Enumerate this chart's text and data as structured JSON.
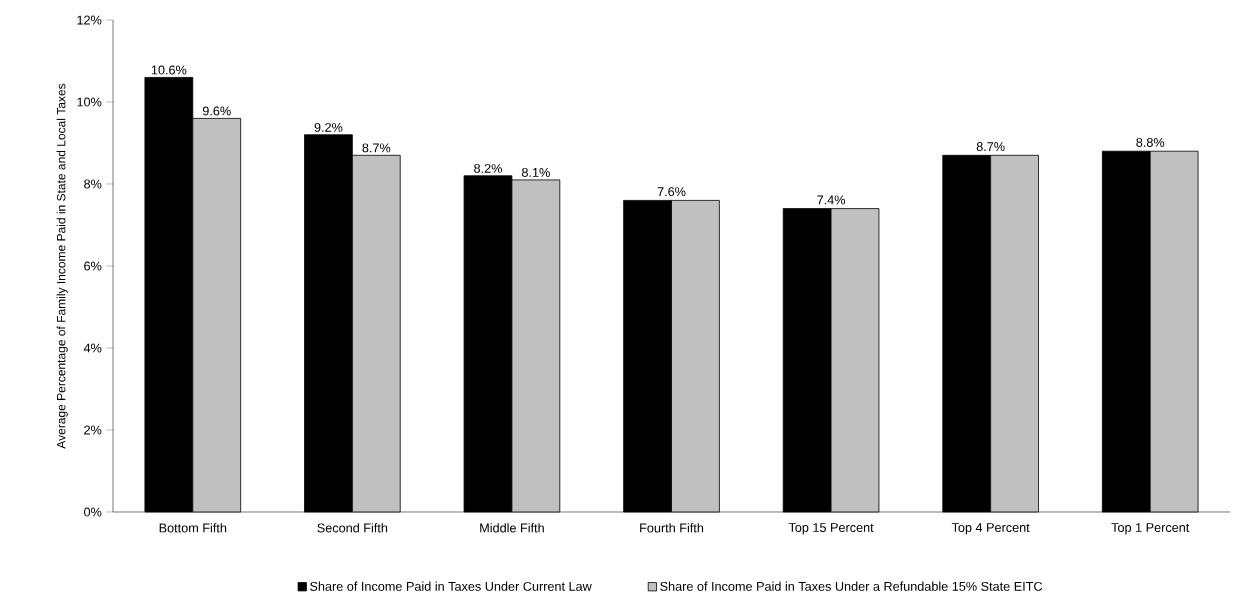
{
  "chart_data": {
    "type": "bar",
    "ylabel": "Average Percentage of Family Income Paid in State and Local Taxes",
    "categories": [
      "Bottom Fifth",
      "Second Fifth",
      "Middle Fifth",
      "Fourth Fifth",
      "Top 15 Percent",
      "Top 4 Percent",
      "Top 1 Percent"
    ],
    "series": [
      {
        "name": "Share of Income Paid in Taxes Under Current Law",
        "color": "#000000",
        "values": [
          10.6,
          9.2,
          8.2,
          7.6,
          7.4,
          8.7,
          8.8
        ],
        "value_labels": [
          "10.6%",
          "9.2%",
          "8.2%",
          null,
          null,
          null,
          null
        ]
      },
      {
        "name": "Share of Income Paid in Taxes Under a Refundable 15% State EITC",
        "color": "#c0c0c0",
        "values": [
          9.6,
          8.7,
          8.1,
          7.6,
          7.4,
          8.7,
          8.8
        ],
        "value_labels": [
          "9.6%",
          "8.7%",
          "8.1%",
          null,
          null,
          null,
          null
        ]
      }
    ],
    "annotations": [
      {
        "text": "7.6%",
        "x": "Fourth Fifth",
        "y": 7.6
      },
      {
        "text": "7.4%",
        "x": "Top 15 Percent",
        "y": 7.4
      },
      {
        "text": "8.7%",
        "x": "Top 4 Percent",
        "y": 8.7
      },
      {
        "text": "8.8%",
        "x": "Top 1 Percent",
        "y": 8.8
      }
    ],
    "ylim": [
      0,
      12
    ],
    "yticks": [
      {
        "value": 0,
        "label": "0%"
      },
      {
        "value": 2,
        "label": "2%"
      },
      {
        "value": 4,
        "label": "4%"
      },
      {
        "value": 6,
        "label": "6%"
      },
      {
        "value": 8,
        "label": "8%"
      },
      {
        "value": 10,
        "label": "10%"
      },
      {
        "value": 12,
        "label": "12%"
      }
    ],
    "legend": "bottom"
  }
}
